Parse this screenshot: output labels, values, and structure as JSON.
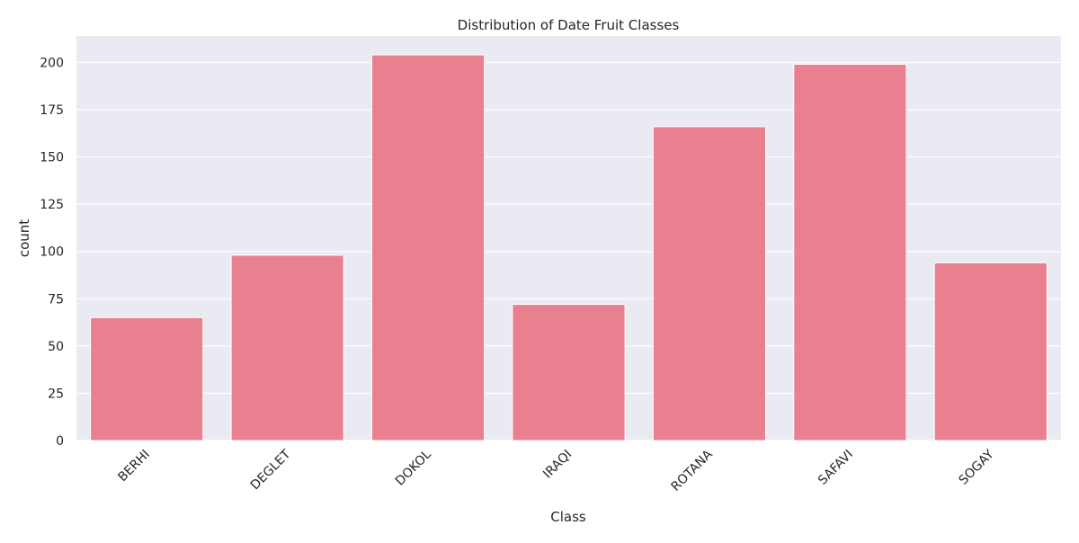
{
  "chart_data": {
    "type": "bar",
    "title": "Distribution of Date Fruit Classes",
    "xlabel": "Class",
    "ylabel": "count",
    "categories": [
      "BERHI",
      "DEGLET",
      "DOKOL",
      "IRAQI",
      "ROTANA",
      "SAFAVI",
      "SOGAY"
    ],
    "values": [
      65,
      98,
      204,
      72,
      166,
      199,
      94
    ],
    "ylim": [
      0,
      214
    ],
    "yticks": [
      0,
      25,
      50,
      75,
      100,
      125,
      150,
      175,
      200
    ],
    "xtick_rotation_deg": 45,
    "grid": true,
    "legend": "none",
    "colors": {
      "bar": "#e8808f",
      "plot_background": "#eaeaf2",
      "grid": "#ffffff",
      "text": "#262626"
    }
  }
}
